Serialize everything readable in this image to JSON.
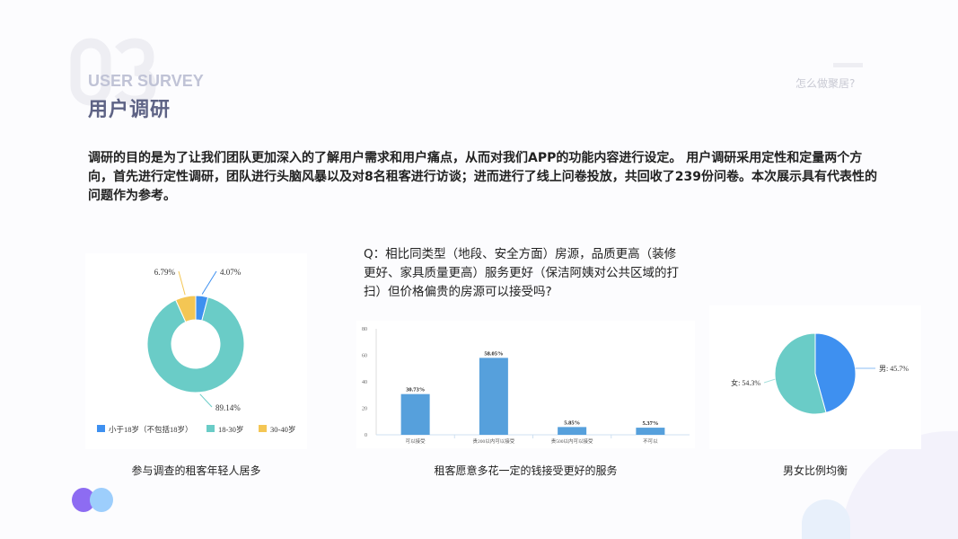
{
  "header": {
    "number": "03",
    "title_en": "USER SURVEY",
    "title_cn": "用户调研",
    "section_link": "怎么做聚居?"
  },
  "intro": "调研的目的是为了让我们团队更加深入的了解用户需求和用户痛点，从而对我们APP的功能内容进行设定。 用户调研采用定性和定量两个方向，首先进行定性调研，团队进行头脑风暴以及对8名租客进行访谈；进而进行了线上问卷投放，共回收了239份问卷。本次展示具有代表性的问题作为参考。",
  "question": "Q：相比同类型（地段、安全方面）房源，品质更高（装修更好、家具质量更高）服务更好（保洁阿姨对公共区域的打扫）但价格偏贵的房源可以接受吗?",
  "captions": [
    "参与调查的租客年轻人居多",
    "租客愿意多花一定的钱接受更好的服务",
    "男女比例均衡"
  ],
  "chart_data": [
    {
      "type": "pie",
      "variant": "donut",
      "categories": [
        "小于18岁（不包括18岁）",
        "18-30岁",
        "30-40岁"
      ],
      "values": [
        4.07,
        89.14,
        6.79
      ],
      "labels": [
        "4.07%",
        "89.14%",
        "6.79%"
      ],
      "colors": [
        "#3e90f0",
        "#6accc7",
        "#f4c654"
      ],
      "legend": "bottom"
    },
    {
      "type": "bar",
      "categories": [
        "可以接受",
        "贵200以内可以接受",
        "贵500以内可以接受",
        "不可以"
      ],
      "values": [
        30.73,
        58.05,
        5.85,
        5.37
      ],
      "labels": [
        "30.73%",
        "58.05%",
        "5.85%",
        "5.37%"
      ],
      "ylim": [
        0,
        80
      ],
      "yticks": [
        "0",
        "20",
        "40",
        "60",
        "80"
      ],
      "color": "#56a0dc"
    },
    {
      "type": "pie",
      "categories": [
        "男",
        "女"
      ],
      "values": [
        45.7,
        54.3
      ],
      "labels": [
        "男: 45.7%",
        "女: 54.3%"
      ],
      "colors": [
        "#3e90f0",
        "#6accc7"
      ]
    }
  ]
}
